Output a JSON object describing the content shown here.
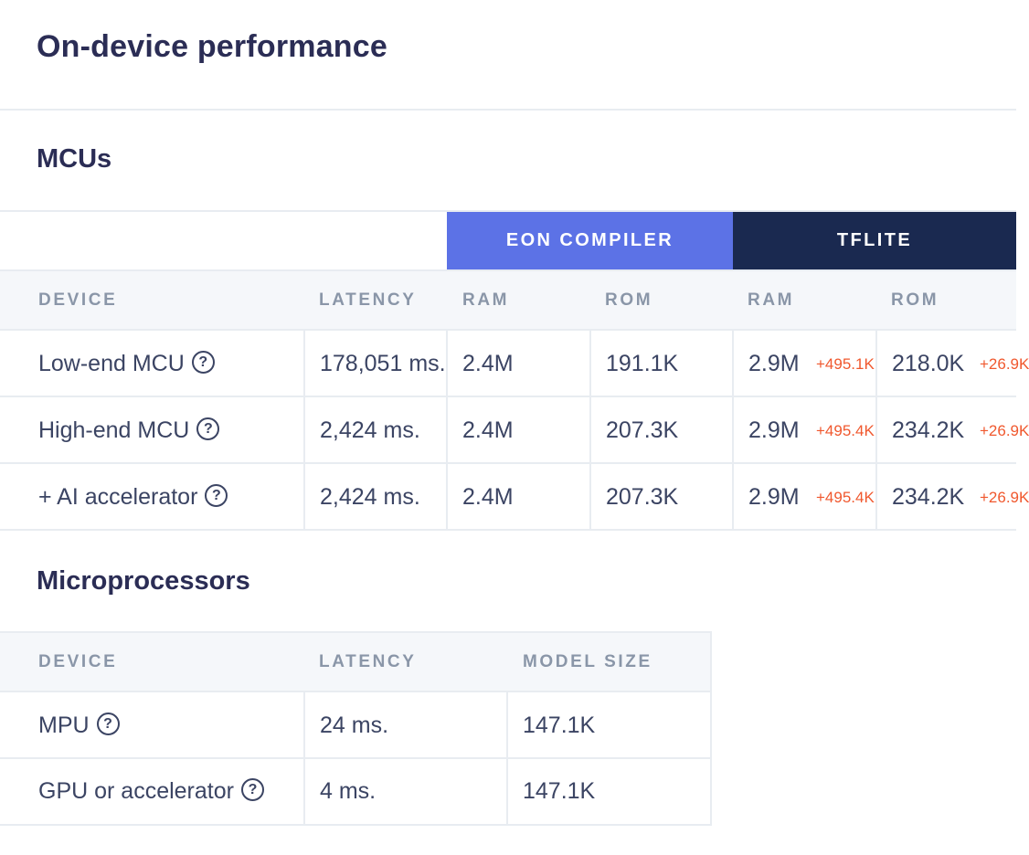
{
  "page": {
    "title": "On-device performance"
  },
  "mcus": {
    "title": "MCUs",
    "groups": {
      "eon": "EON COMPILER",
      "tflite": "TFLITE"
    },
    "headers": {
      "device": "DEVICE",
      "latency": "LATENCY",
      "eon_ram": "RAM",
      "eon_rom": "ROM",
      "tf_ram": "RAM",
      "tf_rom": "ROM"
    },
    "rows": [
      {
        "device": "Low-end MCU",
        "latency": "178,051 ms.",
        "eon_ram": "2.4M",
        "eon_rom": "191.1K",
        "tf_ram": "2.9M",
        "tf_ram_delta": "+495.1K",
        "tf_rom": "218.0K",
        "tf_rom_delta": "+26.9K"
      },
      {
        "device": "High-end MCU",
        "latency": "2,424 ms.",
        "eon_ram": "2.4M",
        "eon_rom": "207.3K",
        "tf_ram": "2.9M",
        "tf_ram_delta": "+495.4K",
        "tf_rom": "234.2K",
        "tf_rom_delta": "+26.9K"
      },
      {
        "device": "+ AI accelerator",
        "latency": "2,424 ms.",
        "eon_ram": "2.4M",
        "eon_rom": "207.3K",
        "tf_ram": "2.9M",
        "tf_ram_delta": "+495.4K",
        "tf_rom": "234.2K",
        "tf_rom_delta": "+26.9K"
      }
    ]
  },
  "microprocessors": {
    "title": "Microprocessors",
    "headers": {
      "device": "DEVICE",
      "latency": "LATENCY",
      "model_size": "MODEL SIZE"
    },
    "rows": [
      {
        "device": "MPU",
        "latency": "24 ms.",
        "model_size": "147.1K"
      },
      {
        "device": "GPU or accelerator",
        "latency": "4 ms.",
        "model_size": "147.1K"
      }
    ]
  },
  "icons": {
    "help": "question-circle-icon"
  },
  "colors": {
    "eon_header": "#5c72e6",
    "tflite_header": "#1a2950",
    "delta": "#f0582e",
    "header_band": "#f5f7fa"
  }
}
